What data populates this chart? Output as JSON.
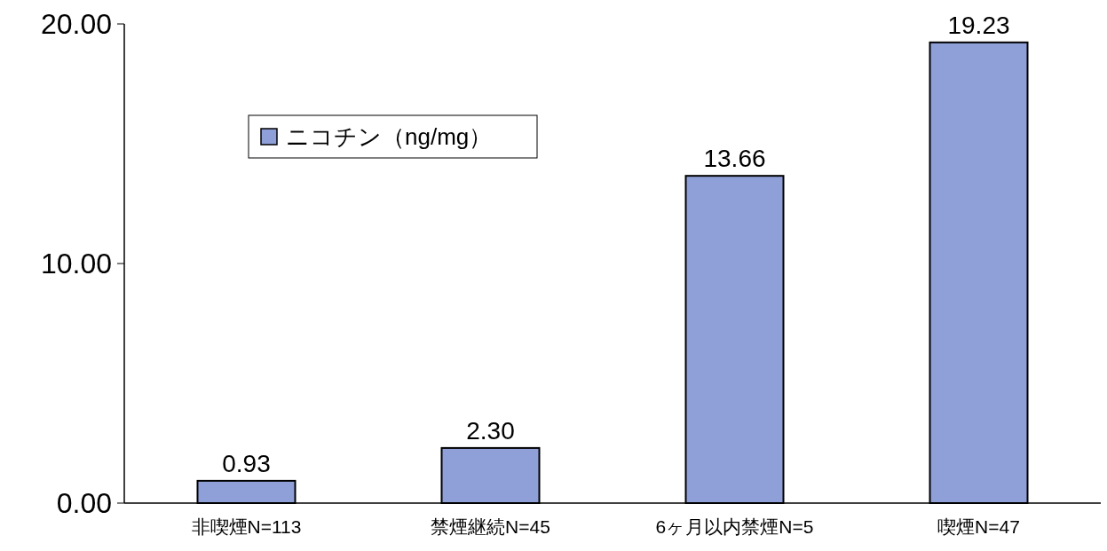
{
  "chart_data": {
    "type": "bar",
    "categories": [
      "非喫煙N=113",
      "禁煙継続N=45",
      "6ヶ月以内禁煙N=5",
      "喫煙N=47"
    ],
    "series": [
      {
        "name": "ニコチン（ng/mg）",
        "color": "#8f9fd8",
        "values": [
          0.93,
          2.3,
          13.66,
          19.23
        ],
        "value_labels": [
          "0.93",
          "2.30",
          "13.66",
          "19.23"
        ]
      }
    ],
    "ylim": [
      0,
      20
    ],
    "yticks": [
      {
        "value": 0,
        "label": "0.00"
      },
      {
        "value": 10,
        "label": "10.00"
      },
      {
        "value": 20,
        "label": "20.00"
      }
    ],
    "grid": false,
    "legend": "top left"
  }
}
